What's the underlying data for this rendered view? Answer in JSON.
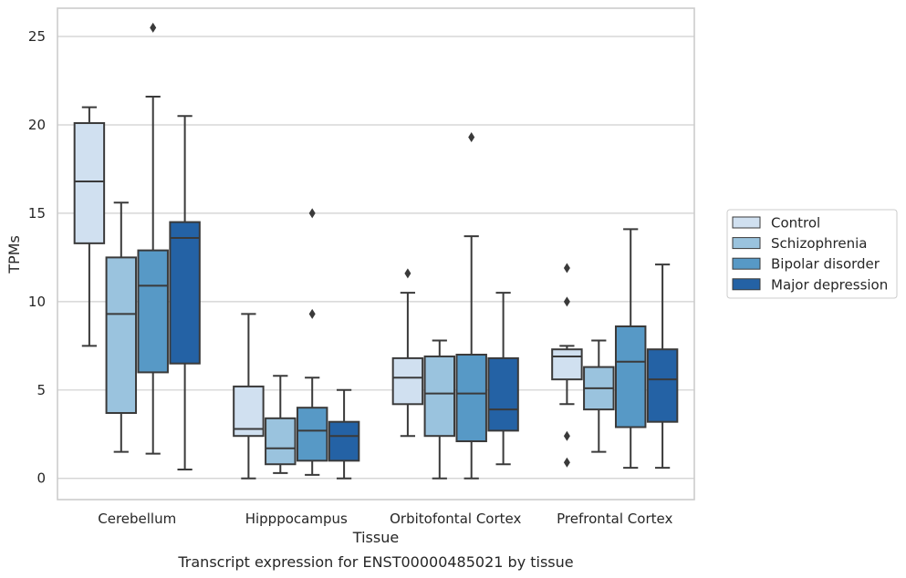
{
  "chart_data": {
    "type": "box",
    "title": "",
    "caption": "Transcript expression for ENST00000485021 by tissue",
    "xlabel": "Tissue",
    "ylabel": "TPMs",
    "ylim": [
      -1.2,
      26.6
    ],
    "yticks": [
      0,
      5,
      10,
      15,
      20,
      25
    ],
    "grid": "horizontal",
    "legend_position": "right",
    "categories": [
      "Cerebellum",
      "Hipppocampus",
      "Orbitofontal Cortex",
      "Prefrontal Cortex"
    ],
    "series": [
      {
        "name": "Control",
        "color": "#d0e0f0",
        "boxes": [
          {
            "whislo": 7.5,
            "q1": 13.3,
            "med": 16.8,
            "q3": 20.1,
            "whishi": 21.0,
            "fliers": []
          },
          {
            "whislo": 0.0,
            "q1": 2.4,
            "med": 2.8,
            "q3": 5.2,
            "whishi": 9.3,
            "fliers": []
          },
          {
            "whislo": 2.4,
            "q1": 4.2,
            "med": 5.7,
            "q3": 6.8,
            "whishi": 10.5,
            "fliers": [
              11.6
            ]
          },
          {
            "whislo": 4.2,
            "q1": 5.6,
            "med": 6.9,
            "q3": 7.3,
            "whishi": 7.5,
            "fliers": [
              0.9,
              2.4,
              10.0,
              11.9
            ]
          }
        ]
      },
      {
        "name": "Schizophrenia",
        "color": "#9ac3de",
        "boxes": [
          {
            "whislo": 1.5,
            "q1": 3.7,
            "med": 9.3,
            "q3": 12.5,
            "whishi": 15.6,
            "fliers": []
          },
          {
            "whislo": 0.3,
            "q1": 0.8,
            "med": 1.7,
            "q3": 3.4,
            "whishi": 5.8,
            "fliers": []
          },
          {
            "whislo": 0.0,
            "q1": 2.4,
            "med": 4.8,
            "q3": 6.9,
            "whishi": 7.8,
            "fliers": []
          },
          {
            "whislo": 1.5,
            "q1": 3.9,
            "med": 5.1,
            "q3": 6.3,
            "whishi": 7.8,
            "fliers": []
          }
        ]
      },
      {
        "name": "Bipolar disorder",
        "color": "#5799c6",
        "boxes": [
          {
            "whislo": 1.4,
            "q1": 6.0,
            "med": 10.9,
            "q3": 12.9,
            "whishi": 21.6,
            "fliers": [
              25.5
            ]
          },
          {
            "whislo": 0.2,
            "q1": 1.0,
            "med": 2.7,
            "q3": 4.0,
            "whishi": 5.7,
            "fliers": [
              9.3,
              15.0
            ]
          },
          {
            "whislo": 0.0,
            "q1": 2.1,
            "med": 4.8,
            "q3": 7.0,
            "whishi": 13.7,
            "fliers": [
              19.3
            ]
          },
          {
            "whislo": 0.6,
            "q1": 2.9,
            "med": 6.6,
            "q3": 8.6,
            "whishi": 14.1,
            "fliers": []
          }
        ]
      },
      {
        "name": "Major depression",
        "color": "#2462a5",
        "boxes": [
          {
            "whislo": 0.5,
            "q1": 6.5,
            "med": 13.6,
            "q3": 14.5,
            "whishi": 20.5,
            "fliers": []
          },
          {
            "whislo": 0.0,
            "q1": 1.0,
            "med": 2.4,
            "q3": 3.2,
            "whishi": 5.0,
            "fliers": []
          },
          {
            "whislo": 0.8,
            "q1": 2.7,
            "med": 3.9,
            "q3": 6.8,
            "whishi": 10.5,
            "fliers": []
          },
          {
            "whislo": 0.6,
            "q1": 3.2,
            "med": 5.6,
            "q3": 7.3,
            "whishi": 12.1,
            "fliers": []
          }
        ]
      }
    ]
  },
  "colors": {
    "grid": "#cfcfcf",
    "frame": "#cccccc",
    "line": "#3a3a3a",
    "text": "#262626"
  }
}
